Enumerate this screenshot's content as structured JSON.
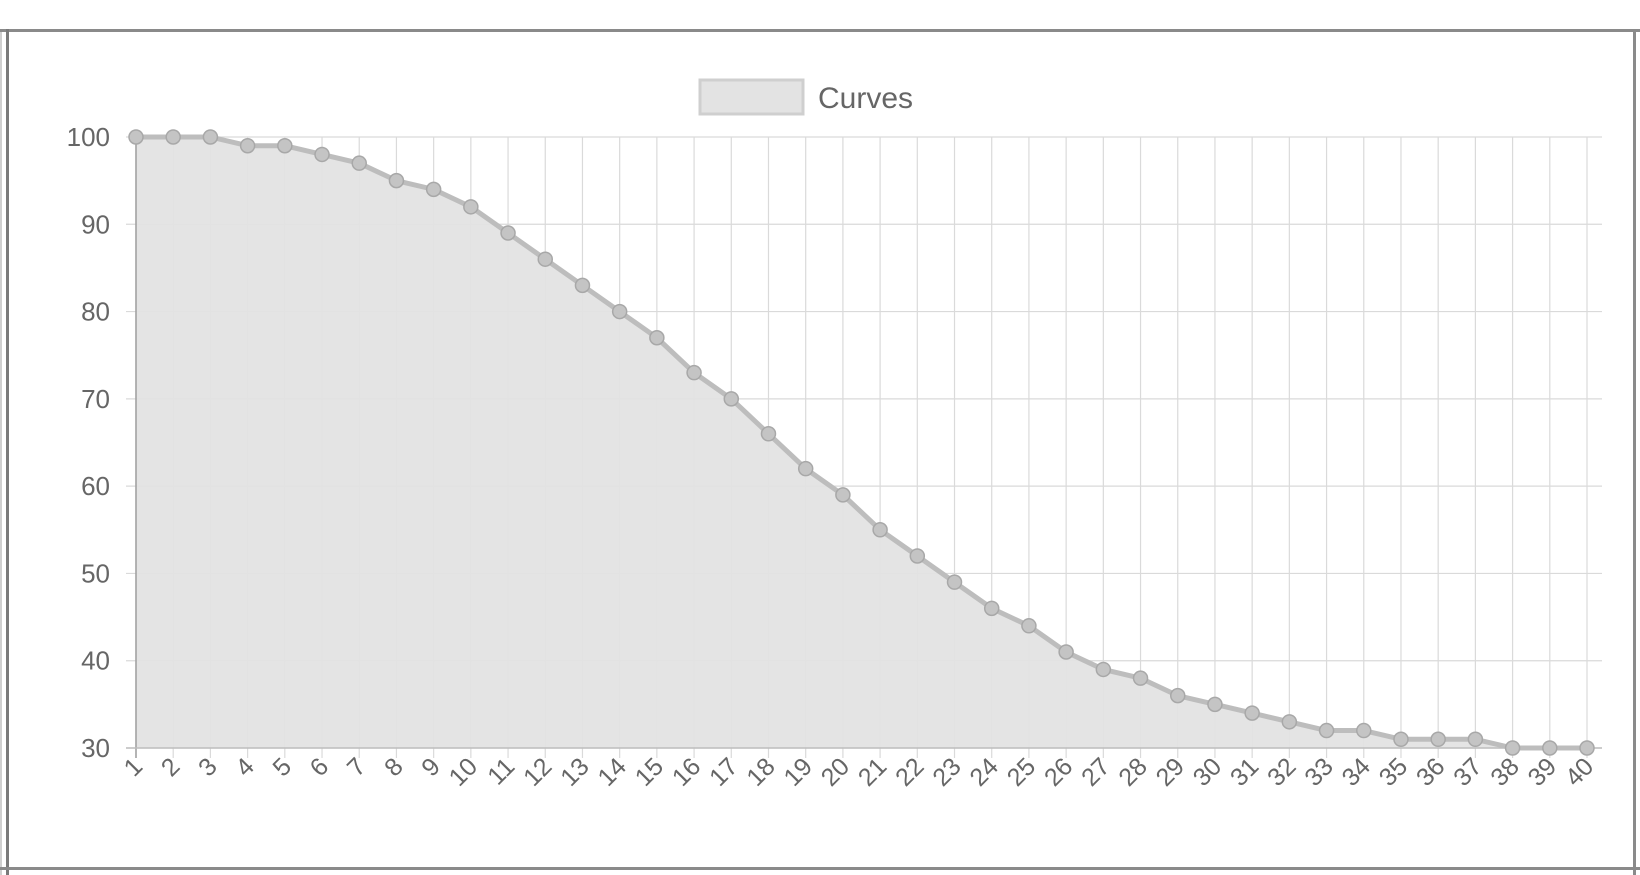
{
  "chart_data": {
    "type": "area",
    "categories": [
      "1",
      "2",
      "3",
      "4",
      "5",
      "6",
      "7",
      "8",
      "9",
      "10",
      "11",
      "12",
      "13",
      "14",
      "15",
      "16",
      "17",
      "18",
      "19",
      "20",
      "21",
      "22",
      "23",
      "24",
      "25",
      "26",
      "27",
      "28",
      "29",
      "30",
      "31",
      "32",
      "33",
      "34",
      "35",
      "36",
      "37",
      "38",
      "39",
      "40"
    ],
    "series": [
      {
        "name": "Curves",
        "values": [
          100,
          100,
          100,
          99,
          99,
          98,
          97,
          95,
          94,
          92,
          89,
          86,
          83,
          80,
          77,
          73,
          70,
          66,
          62,
          59,
          55,
          52,
          49,
          46,
          44,
          41,
          39,
          38,
          36,
          35,
          34,
          33,
          32,
          32,
          31,
          31,
          31,
          30,
          30,
          30
        ],
        "fill_color": "#e3e3e3",
        "line_color": "#bdbdbd",
        "point_color": "#c4c4c4"
      }
    ],
    "yticks": [
      "30",
      "40",
      "50",
      "60",
      "70",
      "80",
      "90",
      "100"
    ],
    "ylim": [
      30,
      100
    ],
    "grid": true,
    "legend": "top-center",
    "grid_color": "#dadada",
    "text_color": "#666666"
  }
}
